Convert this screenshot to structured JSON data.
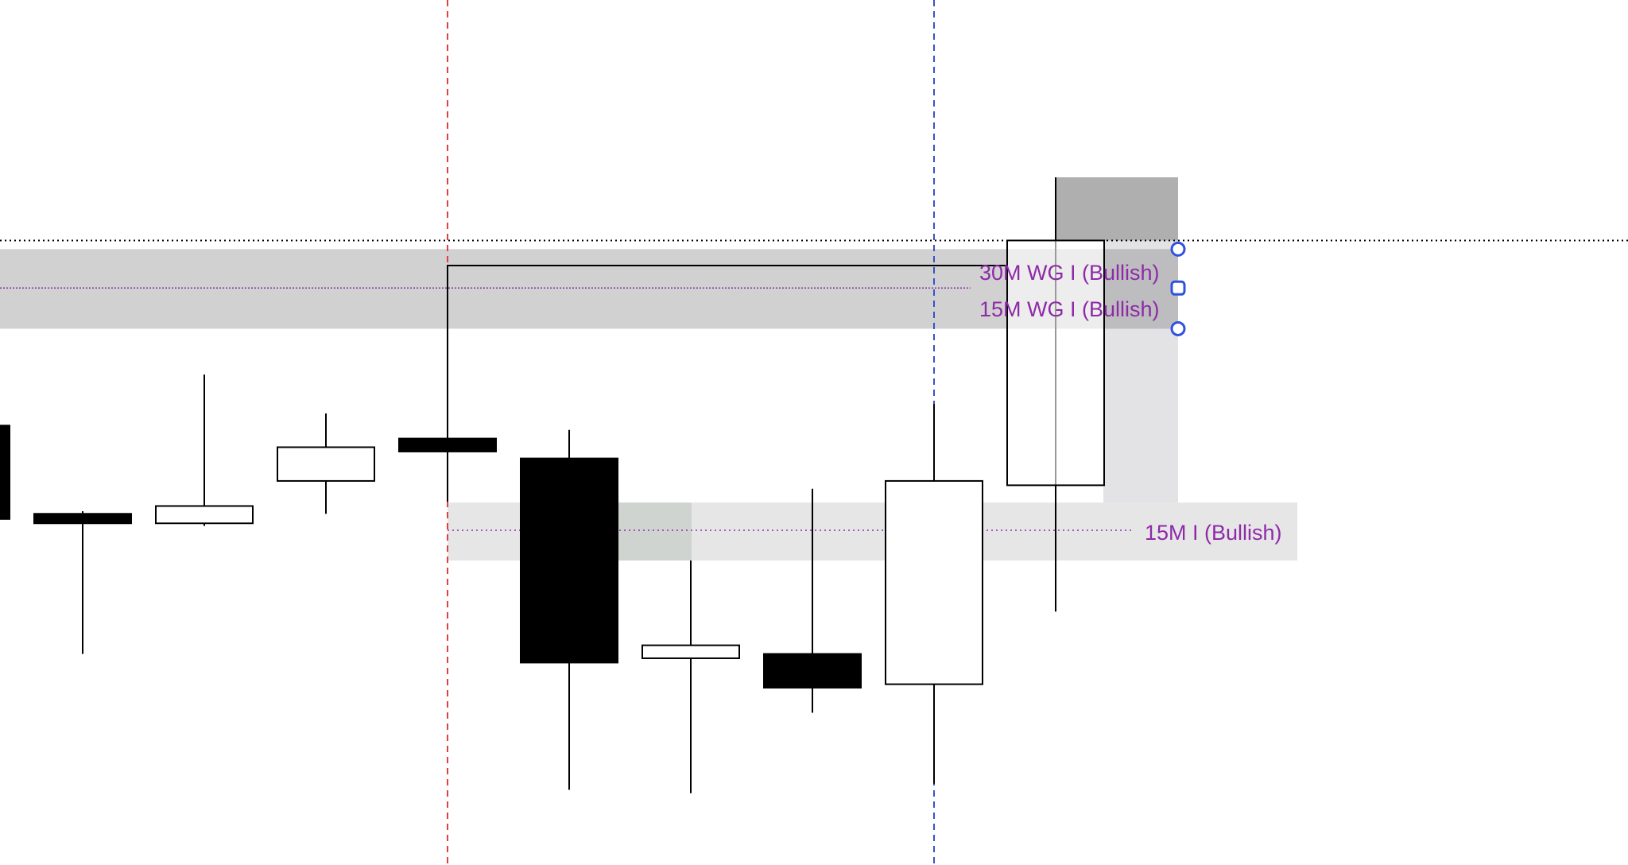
{
  "chart_data": {
    "type": "candlestick",
    "grid": false,
    "value_scale": "relative 0-100 (no price axis printed)",
    "candles": [
      {
        "o": 50.8,
        "h": 50.8,
        "l": 40.0,
        "c": 40.0
      },
      {
        "o": 40.6,
        "h": 40.9,
        "l": 24.4,
        "c": 39.5
      },
      {
        "o": 39.5,
        "h": 56.7,
        "l": 39.2,
        "c": 41.5
      },
      {
        "o": 44.4,
        "h": 52.2,
        "l": 40.6,
        "c": 48.3
      },
      {
        "o": 49.3,
        "h": 49.3,
        "l": 42.0,
        "c": 47.8
      },
      {
        "o": 47.0,
        "h": 50.3,
        "l": 8.7,
        "c": 23.4
      },
      {
        "o": 23.9,
        "h": 35.2,
        "l": 8.3,
        "c": 25.4
      },
      {
        "o": 24.4,
        "h": 43.5,
        "l": 17.6,
        "c": 20.5
      },
      {
        "o": 20.9,
        "h": 53.3,
        "l": 9.4,
        "c": 44.4
      },
      {
        "o": 43.9,
        "h": 79.5,
        "l": 29.3,
        "c": 72.2
      }
    ],
    "zones": [
      {
        "labels": [
          "30M WG I (Bullish)",
          "15M WG I (Bullish)"
        ],
        "top": 71.2,
        "bottom": 62.0,
        "mid": 66.7,
        "from_candle": 0,
        "color": "#d1d1d1"
      },
      {
        "labels": [
          "15M I (Bullish)"
        ],
        "top": 41.9,
        "bottom": 35.2,
        "mid": 38.7,
        "from_candle": 4,
        "color": "#e6e6e6"
      }
    ],
    "horizontal_dotted_level": 72.2,
    "vertical_lines": [
      {
        "candle": 4,
        "color": "#e04040"
      },
      {
        "candle": 8,
        "color": "#3a50c8"
      }
    ],
    "connector": {
      "from_candle": 4,
      "to_candle": 9,
      "level": 69.3
    },
    "colors": {
      "label": "#8e2aa8",
      "handle": "#3050e0",
      "bullish": "#ffffff",
      "bearish": "#000000"
    }
  }
}
